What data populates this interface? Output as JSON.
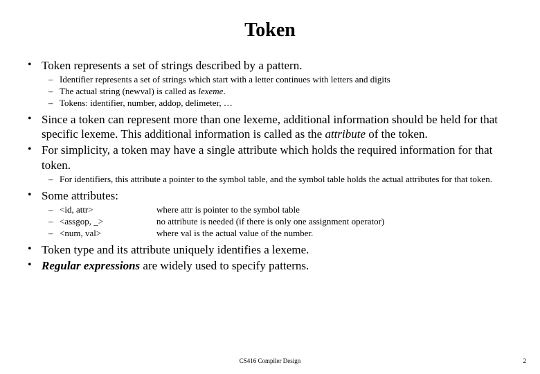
{
  "title": "Token",
  "bullets": {
    "b1": "Token represents a set of strings described by a pattern.",
    "b1_sub1": "Identifier represents a set of strings which start with a letter continues with letters and digits",
    "b1_sub2_a": "The actual string (newval) is called as ",
    "b1_sub2_b": "lexeme",
    "b1_sub2_c": ".",
    "b1_sub3": "Tokens: identifier, number, addop, delimeter, …",
    "b2_a": "Since a token can represent more than one lexeme, additional information should be held for that specific lexeme. This additional information is called as the ",
    "b2_b": "attribute",
    "b2_c": " of the token.",
    "b3": "For simplicity, a token may have a single attribute which holds the required information for that token.",
    "b3_sub1": "For identifiers, this attribute a pointer to the symbol table, and the symbol table holds the actual attributes for that token.",
    "b4": "Some attributes:",
    "b4_k1": "<id, attr>",
    "b4_d1": "where attr is pointer to the symbol table",
    "b4_k2": "<assgop, _>",
    "b4_d2": "no attribute is needed (if there is only one assignment operator)",
    "b4_k3": "<num, val>",
    "b4_d3": "where val is the actual value of the number.",
    "b5": "Token type and its attribute uniquely identifies a lexeme.",
    "b6_a": "Regular expressions",
    "b6_b": " are widely used to specify patterns."
  },
  "footer": "CS416 Compiler Design",
  "page": "2"
}
